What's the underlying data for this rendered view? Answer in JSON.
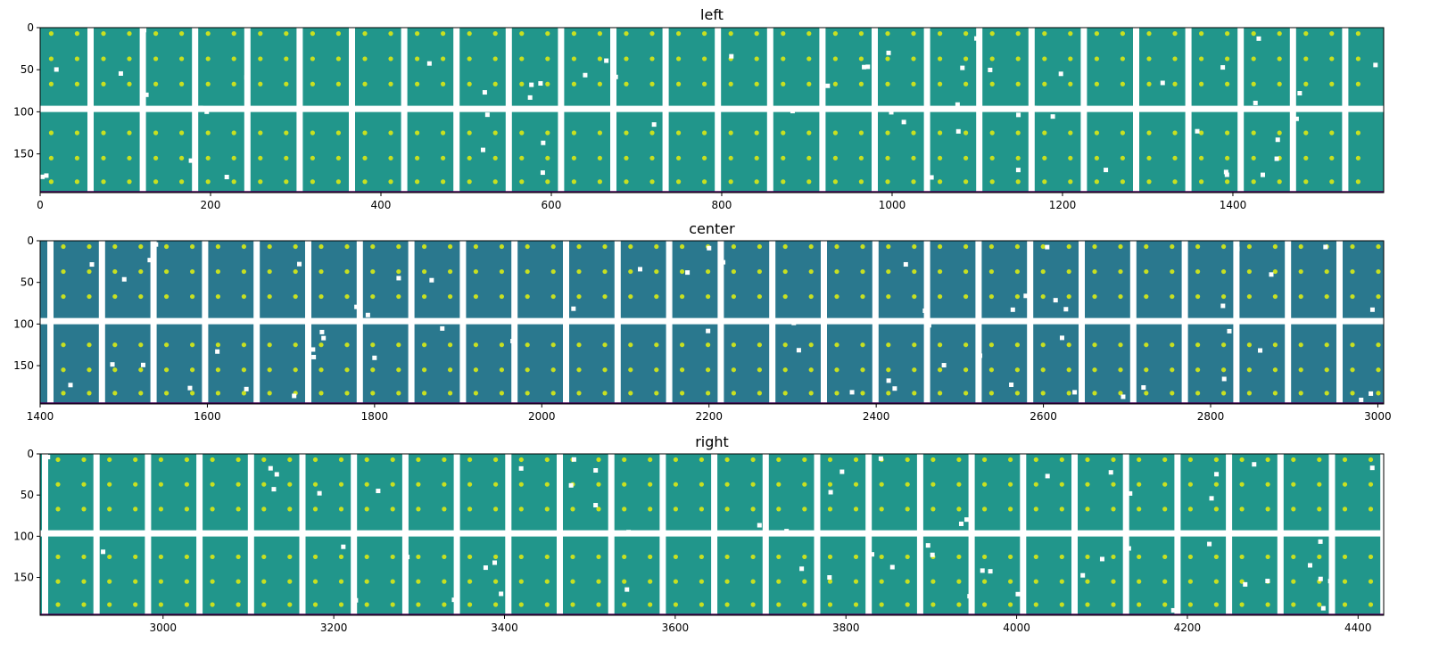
{
  "chart_data": [
    {
      "type": "heatmap",
      "title": "left",
      "xlim": [
        0,
        1577
      ],
      "ylim": [
        196,
        0
      ],
      "xticks": [
        0,
        200,
        400,
        600,
        800,
        1000,
        1200,
        1400
      ],
      "yticks": [
        0,
        50,
        100,
        150
      ],
      "grid": false,
      "background_color": "#21968b",
      "spot_color": "#c8e020"
    },
    {
      "type": "heatmap",
      "title": "center",
      "xlim": [
        1400,
        3007
      ],
      "ylim": [
        196,
        0
      ],
      "xticks": [
        1400,
        1600,
        1800,
        2000,
        2200,
        2400,
        2600,
        2800,
        3000
      ],
      "yticks": [
        0,
        50,
        100,
        150
      ],
      "grid": false,
      "background_color": "#2a788e",
      "spot_color": "#c8e020"
    },
    {
      "type": "heatmap",
      "title": "right",
      "xlim": [
        2856,
        4430
      ],
      "ylim": [
        196,
        0
      ],
      "xticks": [
        3000,
        3200,
        3400,
        3600,
        3800,
        4000,
        4200,
        4400
      ],
      "yticks": [
        0,
        50,
        100,
        150
      ],
      "grid": false,
      "background_color": "#21968b",
      "spot_color": "#c8e020"
    }
  ]
}
